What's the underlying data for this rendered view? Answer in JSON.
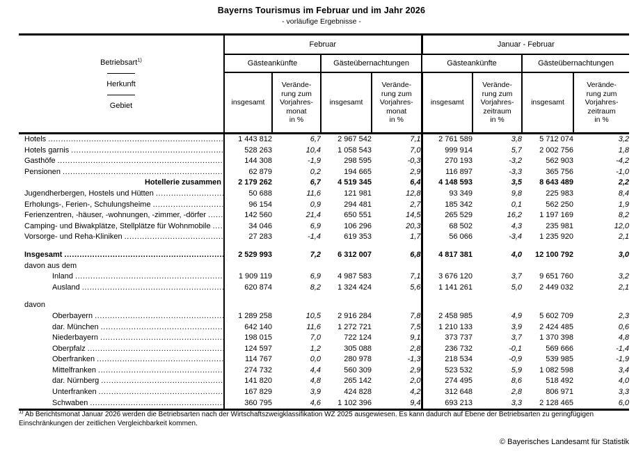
{
  "title": "Bayerns Tourismus im Februar und im Jahr 2026",
  "subtitle": "- vorläufige Ergebnisse -",
  "table": {
    "stub": {
      "line1": "Betriebsart",
      "footnote_mark": "1)",
      "line2": "Herkunft",
      "line3": "Gebiet"
    },
    "periods": [
      "Februar",
      "Januar - Februar"
    ],
    "measures": [
      "Gästeankünfte",
      "Gästeübernachtungen",
      "Gästeankünfte",
      "Gästeübernachtungen"
    ],
    "col_headers": [
      "insgesamt",
      "Verände-\nrung zum\nVorjahres-\nmonat\nin %",
      "insgesamt",
      "Verände-\nrung zum\nVorjahres-\nmonat\nin %",
      "insgesamt",
      "Verände-\nrung zum\nVorjahres-\nzeitraum\nin %",
      "insgesamt",
      "Verände-\nrung zum\nVorjahres-\nzeitraum\nin %"
    ],
    "rows": [
      {
        "label": "Hotels",
        "dots": true,
        "values": [
          "1 443 812",
          "6,7",
          "2 967 542",
          "7,1",
          "2 761 589",
          "3,8",
          "5 712 074",
          "3,2"
        ]
      },
      {
        "label": "Hotels garnis",
        "dots": true,
        "values": [
          "528 263",
          "10,4",
          "1 058 543",
          "7,0",
          "999 914",
          "5,7",
          "2 002 756",
          "1,8"
        ]
      },
      {
        "label": "Gasthöfe",
        "dots": true,
        "values": [
          "144 308",
          "-1,9",
          "298 595",
          "-0,3",
          "270 193",
          "-3,2",
          "562 903",
          "-4,2"
        ]
      },
      {
        "label": "Pensionen",
        "dots": true,
        "values": [
          "62 879",
          "0,2",
          "194 665",
          "2,9",
          "116 897",
          "-3,3",
          "365 756",
          "-1,0"
        ]
      },
      {
        "label": "Hotellerie zusammen",
        "bold": true,
        "align": "right",
        "values": [
          "2 179 262",
          "6,7",
          "4 519 345",
          "6,4",
          "4 148 593",
          "3,5",
          "8 643 489",
          "2,2"
        ]
      },
      {
        "label": "Jugendherbergen, Hostels und Hütten",
        "dots": true,
        "values": [
          "50 688",
          "11,6",
          "121 981",
          "12,8",
          "93 349",
          "9,8",
          "225 983",
          "8,4"
        ]
      },
      {
        "label": "Erholungs-, Ferien-, Schulungsheime",
        "dots": true,
        "values": [
          "96 154",
          "0,9",
          "294 481",
          "2,7",
          "185 342",
          "0,1",
          "562 250",
          "1,9"
        ]
      },
      {
        "label": "Ferienzentren, -häuser, -wohnungen, -zimmer, -dörfer",
        "dots": true,
        "values": [
          "142 560",
          "21,4",
          "650 551",
          "14,5",
          "265 529",
          "16,2",
          "1 197 169",
          "8,2"
        ]
      },
      {
        "label": "Camping- und Biwakplätze, Stellplätze für Wohnmobile",
        "dots": true,
        "values": [
          "34 046",
          "6,9",
          "106 296",
          "20,3",
          "68 502",
          "4,3",
          "235 981",
          "12,0"
        ]
      },
      {
        "label": "Vorsorge- und Reha-Kliniken",
        "dots": true,
        "values": [
          "27 283",
          "-1,4",
          "619 353",
          "1,7",
          "56 066",
          "-3,4",
          "1 235 920",
          "2,1"
        ]
      },
      {
        "type": "spacer"
      },
      {
        "label": "Insgesamt",
        "bold": true,
        "dots": true,
        "values": [
          "2 529 993",
          "7,2",
          "6 312 007",
          "6,8",
          "4 817 381",
          "4,0",
          "12 100 792",
          "3,0"
        ]
      },
      {
        "label": "davon aus dem",
        "type": "label"
      },
      {
        "label": "Inland",
        "indent": true,
        "dots": true,
        "values": [
          "1 909 119",
          "6,9",
          "4 987 583",
          "7,1",
          "3 676 120",
          "3,7",
          "9 651 760",
          "3,2"
        ]
      },
      {
        "label": "Ausland",
        "indent": true,
        "dots": true,
        "values": [
          "620 874",
          "8,2",
          "1 324 424",
          "5,6",
          "1 141 261",
          "5,0",
          "2 449 032",
          "2,1"
        ]
      },
      {
        "type": "spacer"
      },
      {
        "label": "davon",
        "type": "label"
      },
      {
        "label": "Oberbayern",
        "indent": true,
        "dots": true,
        "values": [
          "1 289 258",
          "10,5",
          "2 916 284",
          "7,8",
          "2 458 985",
          "4,9",
          "5 602 709",
          "2,3"
        ]
      },
      {
        "label": "dar. München",
        "indent": true,
        "dots": true,
        "values": [
          "642 140",
          "11,6",
          "1 272 721",
          "7,5",
          "1 210 133",
          "3,9",
          "2 424 485",
          "0,6"
        ]
      },
      {
        "label": "Niederbayern",
        "indent": true,
        "dots": true,
        "values": [
          "198 015",
          "7,0",
          "722 124",
          "9,1",
          "373 737",
          "3,7",
          "1 370 398",
          "4,8"
        ]
      },
      {
        "label": "Oberpfalz",
        "indent": true,
        "dots": true,
        "values": [
          "124 597",
          "1,2",
          "305 088",
          "2,8",
          "236 732",
          "-0,1",
          "569 666",
          "-1,4"
        ]
      },
      {
        "label": "Oberfranken",
        "indent": true,
        "dots": true,
        "values": [
          "114 767",
          "0,0",
          "280 978",
          "-1,3",
          "218 534",
          "-0,9",
          "539 985",
          "-1,9"
        ]
      },
      {
        "label": "Mittelfranken",
        "indent": true,
        "dots": true,
        "values": [
          "274 732",
          "4,4",
          "560 309",
          "2,9",
          "523 532",
          "5,9",
          "1 082 598",
          "3,4"
        ]
      },
      {
        "label": "dar. Nürnberg",
        "indent": true,
        "dots": true,
        "values": [
          "141 820",
          "4,8",
          "265 142",
          "2,0",
          "274 495",
          "8,6",
          "518 492",
          "4,0"
        ]
      },
      {
        "label": "Unterfranken",
        "indent": true,
        "dots": true,
        "values": [
          "167 829",
          "3,9",
          "424 828",
          "4,2",
          "312 648",
          "2,8",
          "806 971",
          "3,3"
        ]
      },
      {
        "label": "Schwaben",
        "indent": true,
        "dots": true,
        "values": [
          "360 795",
          "4,6",
          "1 102 396",
          "9,4",
          "693 213",
          "3,3",
          "2 128 465",
          "6,0"
        ]
      }
    ]
  },
  "footnote": {
    "mark": "1)",
    "text": " Ab Berichtsmonat Januar 2026 werden die Betriebsarten nach der Wirtschaftszweigklassifikation WZ 2025 ausgewiesen. Es kann dadurch auf Ebene der Betriebsarten zu geringfügigen Einschränkungen der zeitlichen Vergleichbarkeit kommen."
  },
  "copyright": "© Bayerisches Landesamt für Statistik"
}
